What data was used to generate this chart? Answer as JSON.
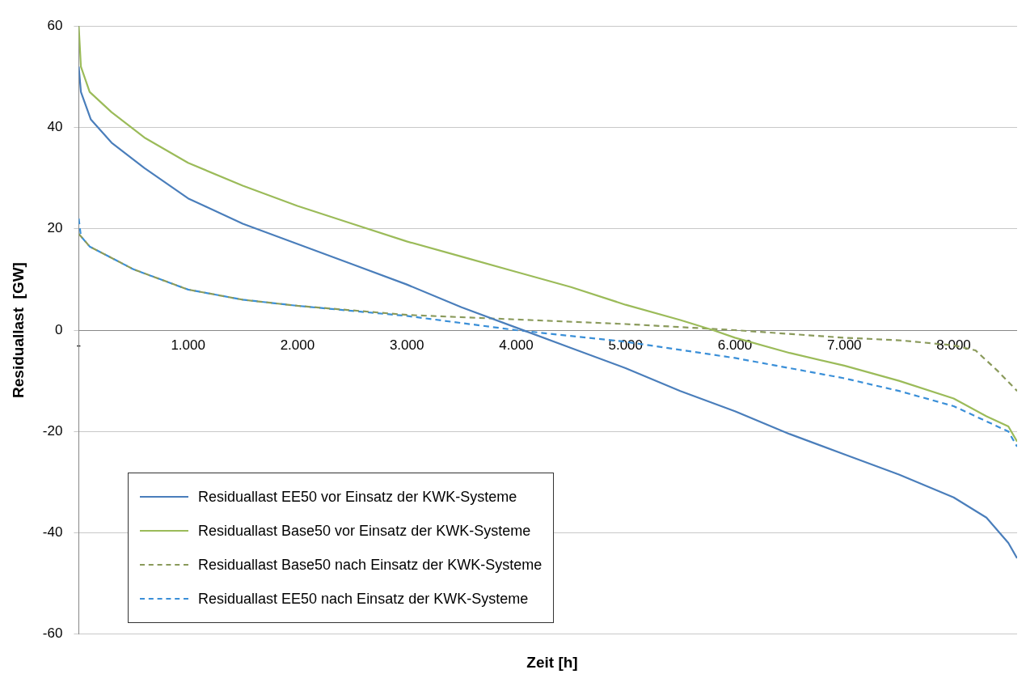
{
  "chart_data": {
    "type": "line",
    "xlabel": "Zeit [h]",
    "ylabel": "Residuallast  [GW]",
    "xlim": [
      0,
      8580
    ],
    "xticks": [
      {
        "value": 0,
        "label": "-"
      },
      {
        "value": 1000,
        "label": "1.000"
      },
      {
        "value": 2000,
        "label": "2.000"
      },
      {
        "value": 3000,
        "label": "3.000"
      },
      {
        "value": 4000,
        "label": "4.000"
      },
      {
        "value": 5000,
        "label": "5.000"
      },
      {
        "value": 6000,
        "label": "6.000"
      },
      {
        "value": 7000,
        "label": "7.000"
      },
      {
        "value": 8000,
        "label": "8.000"
      }
    ],
    "ylim": [
      -60,
      60
    ],
    "yticks": [
      -60,
      -40,
      -20,
      0,
      20,
      40,
      60
    ],
    "grid": "y",
    "legend": "bottom left",
    "marker": "none",
    "series": [
      {
        "name": "Residuallast EE50 vor Einsatz der KWK-Systeme",
        "color": "#4a7ebb",
        "line_style": "solid",
        "x": [
          0,
          20,
          110,
          300,
          600,
          1000,
          1500,
          2000,
          2500,
          3000,
          3500,
          4000,
          4500,
          5000,
          5500,
          6000,
          6500,
          7000,
          7500,
          8000,
          8300,
          8500,
          8580
        ],
        "values": [
          52,
          47,
          41.6,
          37,
          32,
          26,
          21,
          17,
          13,
          9,
          4.5,
          0.5,
          -3.5,
          -7.5,
          -12,
          -16,
          -20.5,
          -24.5,
          -28.5,
          -33,
          -37,
          -42,
          -45
        ]
      },
      {
        "name": "Residuallast Base50 vor Einsatz der KWK-Systeme",
        "color": "#9bbb59",
        "line_style": "solid",
        "x": [
          0,
          20,
          100,
          300,
          600,
          1000,
          1500,
          2000,
          2500,
          3000,
          3500,
          4000,
          4500,
          5000,
          5500,
          5800,
          6000,
          6500,
          7000,
          7500,
          8000,
          8300,
          8500,
          8580
        ],
        "values": [
          60,
          52,
          47,
          43,
          38,
          33,
          28.5,
          24.5,
          21,
          17.5,
          14.5,
          11.5,
          8.5,
          5,
          2,
          0,
          -1.5,
          -4.5,
          -7,
          -10,
          -13.5,
          -17,
          -19,
          -22
        ]
      },
      {
        "name": "Residuallast Base50 nach Einsatz der KWK-Systeme",
        "color": "#8a9a5b",
        "line_style": "dashed",
        "x": [
          0,
          100,
          500,
          1000,
          1500,
          2000,
          3000,
          4000,
          5000,
          6000,
          7000,
          7500,
          8000,
          8200,
          8400,
          8580
        ],
        "values": [
          19,
          16.5,
          12,
          8,
          6,
          4.8,
          3,
          2.1,
          1.2,
          0,
          -1.5,
          -2,
          -3,
          -4,
          -8,
          -12
        ]
      },
      {
        "name": "Residuallast EE50 nach Einsatz der KWK-Systeme",
        "color": "#3a8fd8",
        "line_style": "dashed",
        "x": [
          0,
          20,
          100,
          500,
          1000,
          1500,
          2000,
          3000,
          4000,
          5000,
          6000,
          7000,
          7500,
          8000,
          8300,
          8500,
          8580
        ],
        "values": [
          22,
          18.5,
          16.5,
          12,
          8,
          6,
          4.8,
          2.8,
          0,
          -2.3,
          -5.5,
          -9.5,
          -12,
          -15,
          -18,
          -20,
          -23
        ]
      }
    ]
  }
}
